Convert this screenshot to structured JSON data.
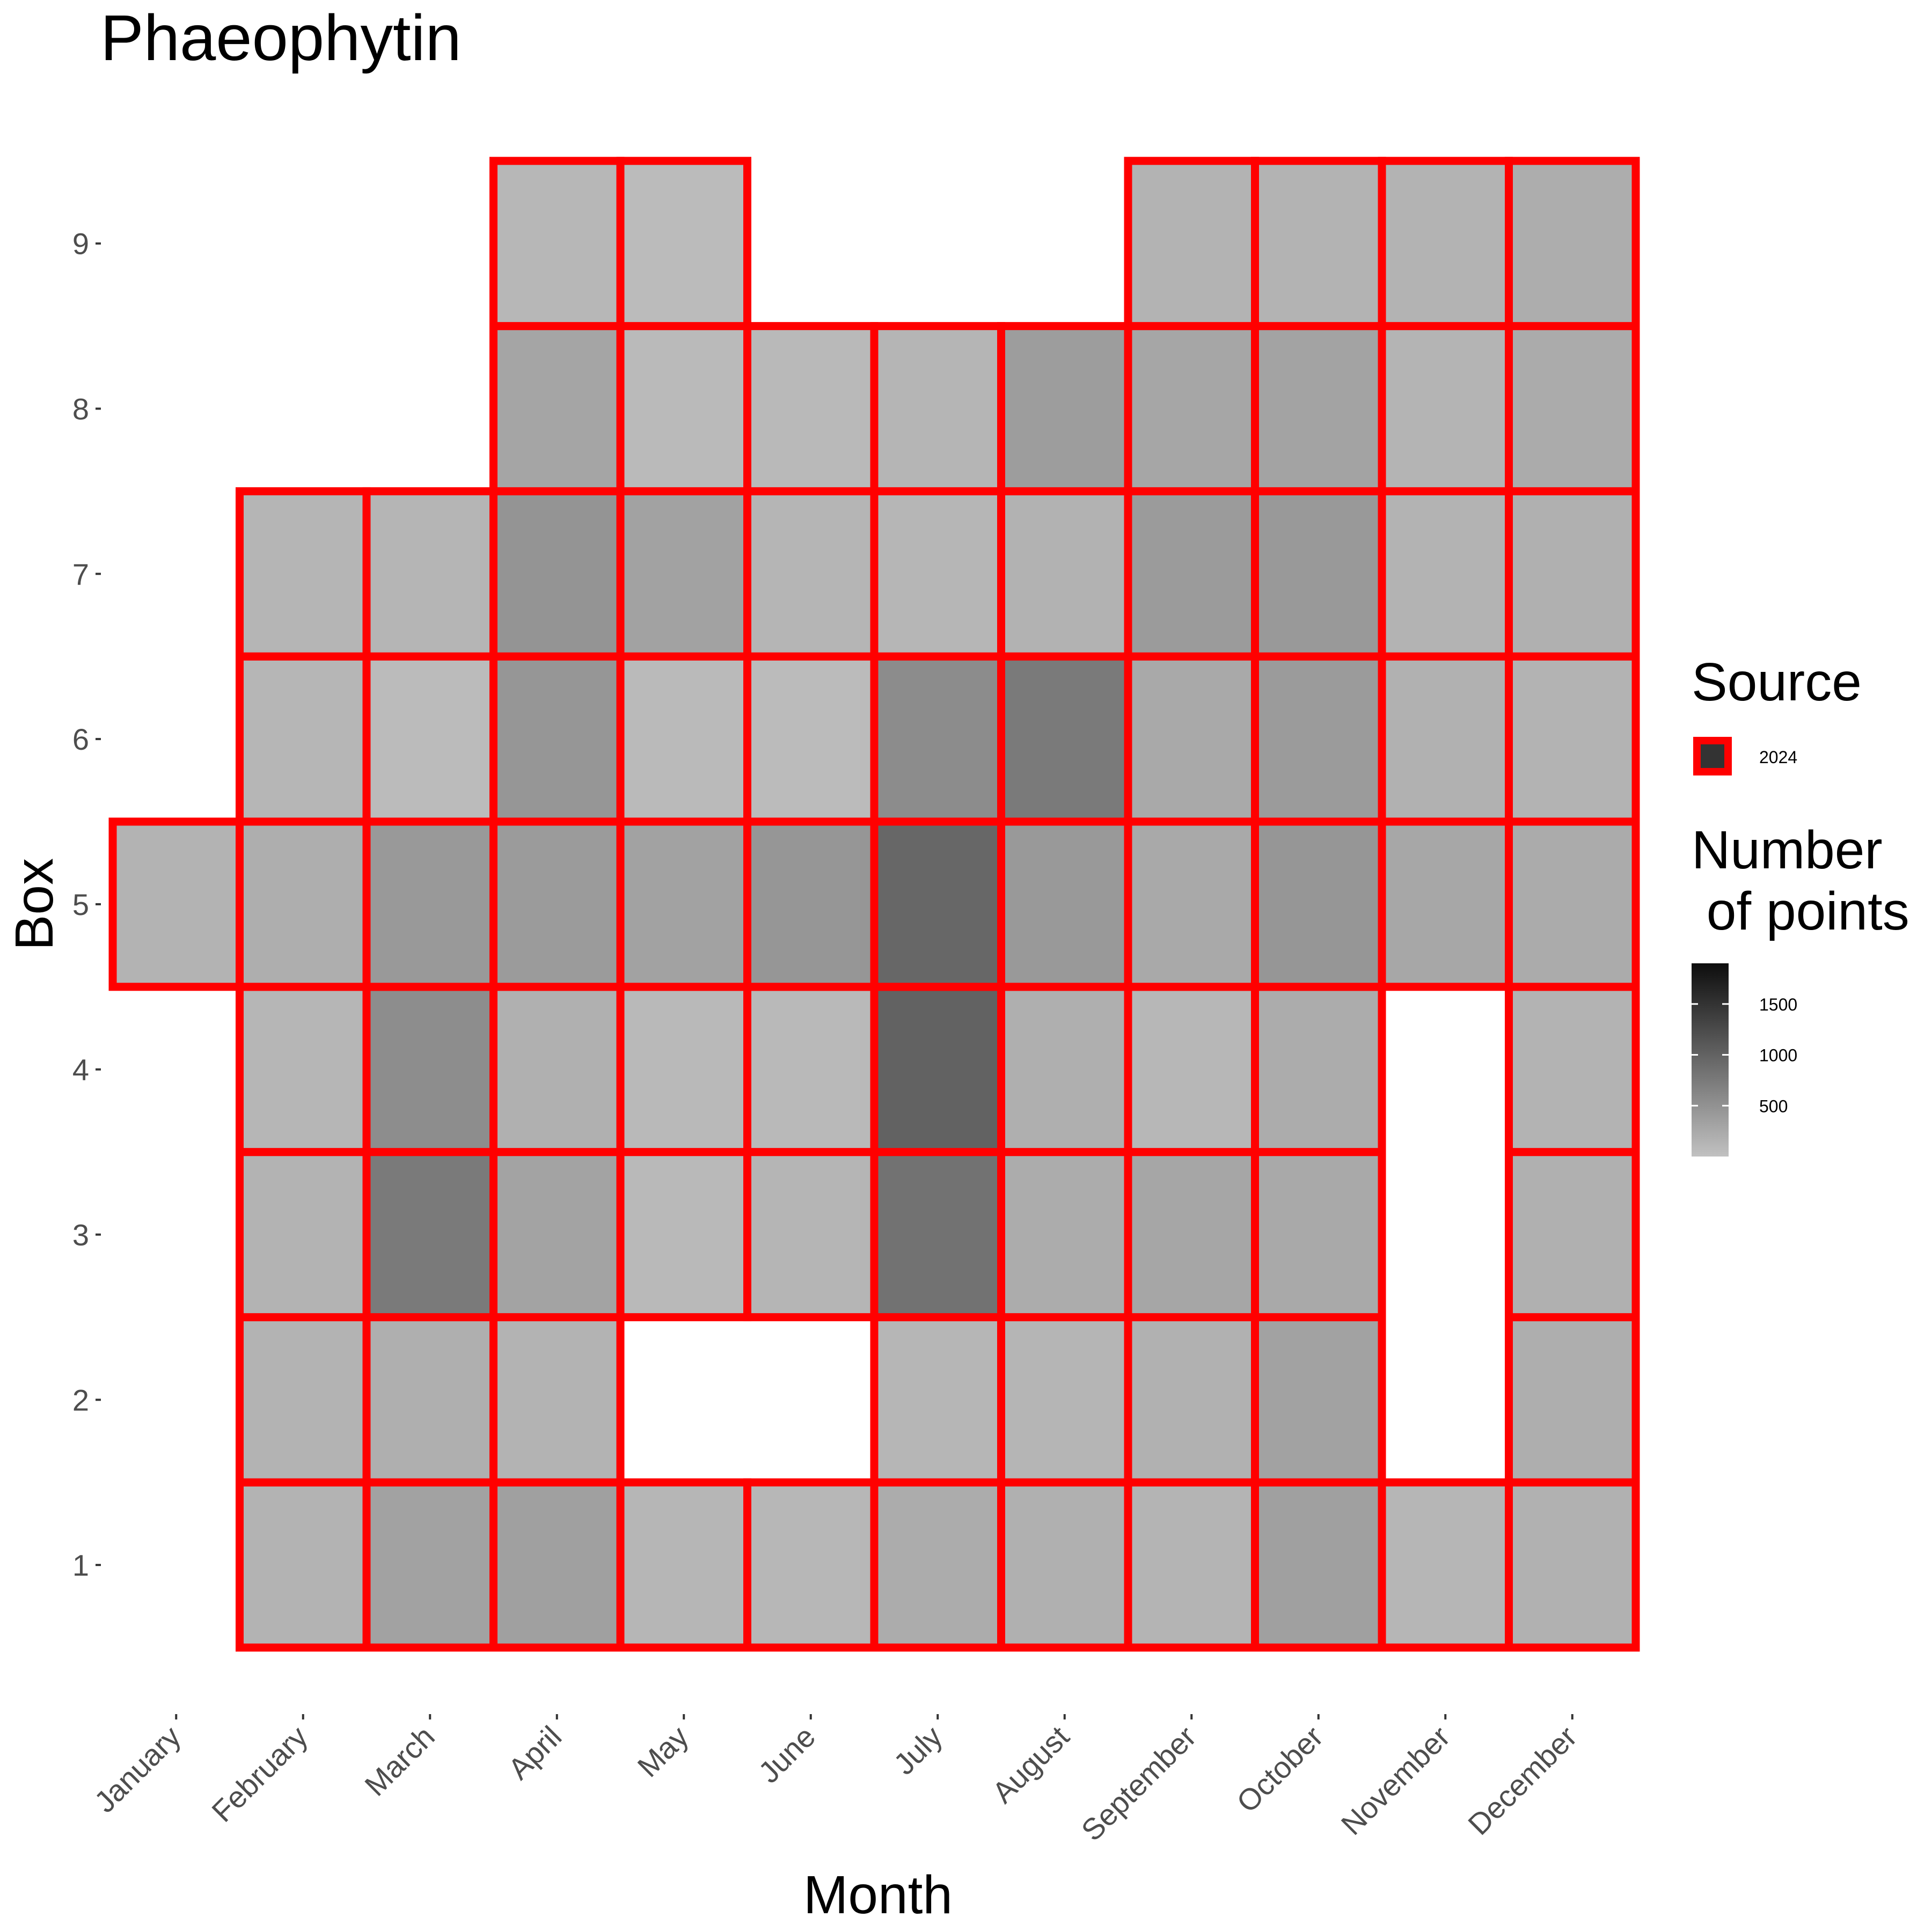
{
  "chart_data": {
    "type": "heatmap",
    "title": "Phaeophytin",
    "xlabel": "Month",
    "ylabel": "Box",
    "categories": [
      "January",
      "February",
      "March",
      "April",
      "May",
      "June",
      "July",
      "August",
      "September",
      "October",
      "November",
      "December"
    ],
    "y_ticks": [
      "1",
      "2",
      "3",
      "4",
      "5",
      "6",
      "7",
      "8",
      "9"
    ],
    "cells": [
      {
        "month": "January",
        "box": 5,
        "value": 150
      },
      {
        "month": "February",
        "box": 1,
        "value": 150
      },
      {
        "month": "February",
        "box": 2,
        "value": 150
      },
      {
        "month": "February",
        "box": 3,
        "value": 150
      },
      {
        "month": "February",
        "box": 4,
        "value": 120
      },
      {
        "month": "February",
        "box": 5,
        "value": 200
      },
      {
        "month": "February",
        "box": 6,
        "value": 120
      },
      {
        "month": "February",
        "box": 7,
        "value": 130
      },
      {
        "month": "March",
        "box": 1,
        "value": 330
      },
      {
        "month": "March",
        "box": 2,
        "value": 190
      },
      {
        "month": "March",
        "box": 3,
        "value": 750
      },
      {
        "month": "March",
        "box": 4,
        "value": 550
      },
      {
        "month": "March",
        "box": 5,
        "value": 420
      },
      {
        "month": "March",
        "box": 6,
        "value": 60
      },
      {
        "month": "March",
        "box": 7,
        "value": 130
      },
      {
        "month": "April",
        "box": 1,
        "value": 350
      },
      {
        "month": "April",
        "box": 2,
        "value": 150
      },
      {
        "month": "April",
        "box": 3,
        "value": 320
      },
      {
        "month": "April",
        "box": 4,
        "value": 180
      },
      {
        "month": "April",
        "box": 5,
        "value": 400
      },
      {
        "month": "April",
        "box": 6,
        "value": 450
      },
      {
        "month": "April",
        "box": 7,
        "value": 480
      },
      {
        "month": "April",
        "box": 8,
        "value": 300
      },
      {
        "month": "April",
        "box": 9,
        "value": 110
      },
      {
        "month": "May",
        "box": 1,
        "value": 120
      },
      {
        "month": "May",
        "box": 3,
        "value": 80
      },
      {
        "month": "May",
        "box": 4,
        "value": 80
      },
      {
        "month": "May",
        "box": 5,
        "value": 330
      },
      {
        "month": "May",
        "box": 6,
        "value": 70
      },
      {
        "month": "May",
        "box": 7,
        "value": 330
      },
      {
        "month": "May",
        "box": 8,
        "value": 70
      },
      {
        "month": "May",
        "box": 9,
        "value": 60
      },
      {
        "month": "June",
        "box": 1,
        "value": 110
      },
      {
        "month": "June",
        "box": 3,
        "value": 130
      },
      {
        "month": "June",
        "box": 4,
        "value": 80
      },
      {
        "month": "June",
        "box": 5,
        "value": 450
      },
      {
        "month": "June",
        "box": 6,
        "value": 60
      },
      {
        "month": "June",
        "box": 7,
        "value": 130
      },
      {
        "month": "June",
        "box": 8,
        "value": 80
      },
      {
        "month": "July",
        "box": 1,
        "value": 220
      },
      {
        "month": "July",
        "box": 2,
        "value": 120
      },
      {
        "month": "July",
        "box": 3,
        "value": 830
      },
      {
        "month": "July",
        "box": 4,
        "value": 1000
      },
      {
        "month": "July",
        "box": 5,
        "value": 950
      },
      {
        "month": "July",
        "box": 6,
        "value": 560
      },
      {
        "month": "July",
        "box": 7,
        "value": 120
      },
      {
        "month": "July",
        "box": 8,
        "value": 130
      },
      {
        "month": "August",
        "box": 1,
        "value": 180
      },
      {
        "month": "August",
        "box": 2,
        "value": 130
      },
      {
        "month": "August",
        "box": 3,
        "value": 220
      },
      {
        "month": "August",
        "box": 4,
        "value": 190
      },
      {
        "month": "August",
        "box": 5,
        "value": 420
      },
      {
        "month": "August",
        "box": 6,
        "value": 750
      },
      {
        "month": "August",
        "box": 7,
        "value": 160
      },
      {
        "month": "August",
        "box": 8,
        "value": 380
      },
      {
        "month": "September",
        "box": 1,
        "value": 140
      },
      {
        "month": "September",
        "box": 2,
        "value": 170
      },
      {
        "month": "September",
        "box": 3,
        "value": 290
      },
      {
        "month": "September",
        "box": 4,
        "value": 110
      },
      {
        "month": "September",
        "box": 5,
        "value": 250
      },
      {
        "month": "September",
        "box": 6,
        "value": 250
      },
      {
        "month": "September",
        "box": 7,
        "value": 400
      },
      {
        "month": "September",
        "box": 8,
        "value": 280
      },
      {
        "month": "September",
        "box": 9,
        "value": 150
      },
      {
        "month": "October",
        "box": 1,
        "value": 350
      },
      {
        "month": "October",
        "box": 2,
        "value": 330
      },
      {
        "month": "October",
        "box": 3,
        "value": 250
      },
      {
        "month": "October",
        "box": 4,
        "value": 220
      },
      {
        "month": "October",
        "box": 5,
        "value": 450
      },
      {
        "month": "October",
        "box": 6,
        "value": 400
      },
      {
        "month": "October",
        "box": 7,
        "value": 420
      },
      {
        "month": "October",
        "box": 8,
        "value": 320
      },
      {
        "month": "October",
        "box": 9,
        "value": 150
      },
      {
        "month": "November",
        "box": 1,
        "value": 120
      },
      {
        "month": "November",
        "box": 5,
        "value": 270
      },
      {
        "month": "November",
        "box": 6,
        "value": 170
      },
      {
        "month": "November",
        "box": 7,
        "value": 150
      },
      {
        "month": "November",
        "box": 8,
        "value": 140
      },
      {
        "month": "November",
        "box": 9,
        "value": 150
      },
      {
        "month": "December",
        "box": 1,
        "value": 170
      },
      {
        "month": "December",
        "box": 2,
        "value": 200
      },
      {
        "month": "December",
        "box": 3,
        "value": 180
      },
      {
        "month": "December",
        "box": 4,
        "value": 150
      },
      {
        "month": "December",
        "box": 5,
        "value": 230
      },
      {
        "month": "December",
        "box": 6,
        "value": 150
      },
      {
        "month": "December",
        "box": 7,
        "value": 180
      },
      {
        "month": "December",
        "box": 8,
        "value": 230
      },
      {
        "month": "December",
        "box": 9,
        "value": 210
      }
    ],
    "outline_color": "#ff0000",
    "fill_scale": {
      "low": "#c1c1c1",
      "high": "#0d0d0d",
      "min": 0,
      "max": 1900
    },
    "legend": {
      "source_title": "Source",
      "source_label": "2024",
      "source_swatch": "#333333",
      "count_title_line1": "Number",
      "count_title_line2": " of points",
      "count_ticks": [
        1500,
        1000,
        500
      ],
      "count_tick_labels": [
        "1500",
        "1000",
        "500"
      ]
    }
  }
}
